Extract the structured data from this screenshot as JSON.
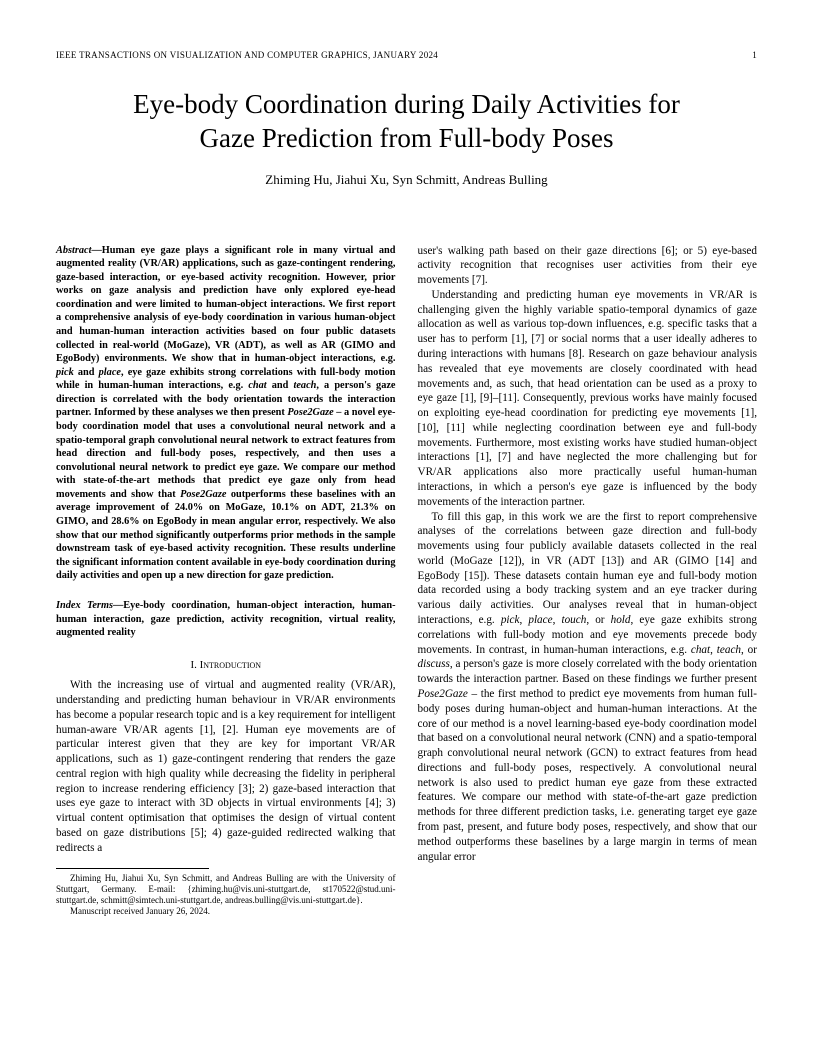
{
  "header": {
    "journal": "IEEE TRANSACTIONS ON VISUALIZATION AND COMPUTER GRAPHICS, JANUARY 2024",
    "page": "1"
  },
  "title_line1": "Eye-body Coordination during Daily Activities for",
  "title_line2": "Gaze Prediction from Full-body Poses",
  "authors": "Zhiming Hu, Jiahui Xu, Syn Schmitt, Andreas Bulling",
  "abstract": {
    "lead": "Abstract",
    "body_a": "—Human eye gaze plays a significant role in many virtual and augmented reality (VR/AR) applications, such as gaze-contingent rendering, gaze-based interaction, or eye-based activity recognition. However, prior works on gaze analysis and prediction have only explored eye-head coordination and were limited to human-object interactions. We first report a comprehensive analysis of eye-body coordination in various human-object and human-human interaction activities based on four public datasets collected in real-world (MoGaze), VR (ADT), as well as AR (GIMO and EgoBody) environments. We show that in human-object interactions, e.g. ",
    "pick": "pick",
    "and1": " and ",
    "place": "place",
    "body_b": ", eye gaze exhibits strong correlations with full-body motion while in human-human interactions, e.g. ",
    "chat": "chat",
    "and2": " and ",
    "teach": "teach",
    "body_c": ", a person's gaze direction is correlated with the body orientation towards the interaction partner. Informed by these analyses we then present ",
    "pose2gaze": "Pose2Gaze",
    "body_d": " – a novel eye-body coordination model that uses a convolutional neural network and a spatio-temporal graph convolutional neural network to extract features from head direction and full-body poses, respectively, and then uses a convolutional neural network to predict eye gaze. We compare our method with state-of-the-art methods that predict eye gaze only from head movements and show that ",
    "pose2gaze2": "Pose2Gaze",
    "body_e": " outperforms these baselines with an average improvement of ",
    "pct1": "24.0%",
    "body_f": " on MoGaze, ",
    "pct2": "10.1%",
    "body_g": " on ADT, ",
    "pct3": "21.3%",
    "body_h": " on GIMO, and ",
    "pct4": "28.6%",
    "body_i": " on EgoBody in mean angular error, respectively. We also show that our method significantly outperforms prior methods in the sample downstream task of eye-based activity recognition. These results underline the significant information content available in eye-body coordination during daily activities and open up a new direction for gaze prediction."
  },
  "index_terms": {
    "lead": "Index Terms",
    "text": "—Eye-body coordination, human-object interaction, human-human interaction, gaze prediction, activity recognition, virtual reality, augmented reality"
  },
  "section1_title": "I.  Introduction",
  "intro_para1": "With the increasing use of virtual and augmented reality (VR/AR), understanding and predicting human behaviour in VR/AR environments has become a popular research topic and is a key requirement for intelligent human-aware VR/AR agents [1], [2]. Human eye movements are of particular interest given that they are key for important VR/AR applications, such as 1) gaze-contingent rendering that renders the gaze central region with high quality while decreasing the fidelity in peripheral region to increase rendering efficiency [3]; 2) gaze-based interaction that uses eye gaze to interact with 3D objects in virtual environments [4]; 3) virtual content optimisation that optimises the design of virtual content based on gaze distributions [5]; 4) gaze-guided redirected walking that redirects a",
  "col2_para1": "user's walking path based on their gaze directions [6]; or 5) eye-based activity recognition that recognises user activities from their eye movements [7].",
  "col2_para2": "Understanding and predicting human eye movements in VR/AR is challenging given the highly variable spatio-temporal dynamics of gaze allocation as well as various top-down influences, e.g. specific tasks that a user has to perform [1], [7] or social norms that a user ideally adheres to during interactions with humans [8]. Research on gaze behaviour analysis has revealed that eye movements are closely coordinated with head movements and, as such, that head orientation can be used as a proxy to eye gaze [1], [9]–[11]. Consequently, previous works have mainly focused on exploiting eye-head coordination for predicting eye movements [1], [10], [11] while neglecting coordination between eye and full-body movements. Furthermore, most existing works have studied human-object interactions [1], [7] and have neglected the more challenging but for VR/AR applications also more practically useful human-human interactions, in which a person's eye gaze is influenced by the body movements of the interaction partner.",
  "col2_para3_a": "To fill this gap, in this work we are the first to report comprehensive analyses of the correlations between gaze direction and full-body movements using four publicly available datasets collected in the real world (MoGaze [12]), in VR (ADT [13]) and AR (GIMO [14] and EgoBody [15]). These datasets contain human eye and full-body motion data recorded using a body tracking system and an eye tracker during various daily activities. Our analyses reveal that in human-object interactions, e.g. ",
  "col2_pick": "pick",
  "col2_c1": ", ",
  "col2_place": "place",
  "col2_c2": ", ",
  "col2_touch": "touch",
  "col2_c3": ", or ",
  "col2_hold": "hold",
  "col2_para3_b": ", eye gaze exhibits strong correlations with full-body motion and eye movements precede body movements. In contrast, in human-human interactions, e.g. ",
  "col2_chat": "chat",
  "col2_c4": ", ",
  "col2_teach": "teach",
  "col2_c5": ", or ",
  "col2_discuss": "discuss",
  "col2_para3_c": ", a person's gaze is more closely correlated with the body orientation towards the interaction partner. Based on these findings we further present ",
  "col2_pose2gaze": "Pose2Gaze",
  "col2_para3_d": " – the first method to predict eye movements from human full-body poses during human-object and human-human interactions. At the core of our method is a novel learning-based eye-body coordination model that based on a convolutional neural network (CNN) and a spatio-temporal graph convolutional neural network (GCN) to extract features from head directions and full-body poses, respectively. A convolutional neural network is also used to predict human eye gaze from these extracted features. We compare our method with state-of-the-art gaze prediction methods for three different prediction tasks, i.e. generating target eye gaze from past, present, and future body poses, respectively, and show that our method outperforms these baselines by a large margin in terms of mean angular error",
  "footnote1": "Zhiming Hu, Jiahui Xu, Syn Schmitt, and Andreas Bulling are with the University of Stuttgart, Germany. E-mail: {zhiming.hu@vis.uni-stuttgart.de, st170522@stud.uni-stuttgart.de, schmitt@simtech.uni-stuttgart.de, andreas.bulling@vis.uni-stuttgart.de}.",
  "footnote2": "Manuscript received January 26, 2024."
}
